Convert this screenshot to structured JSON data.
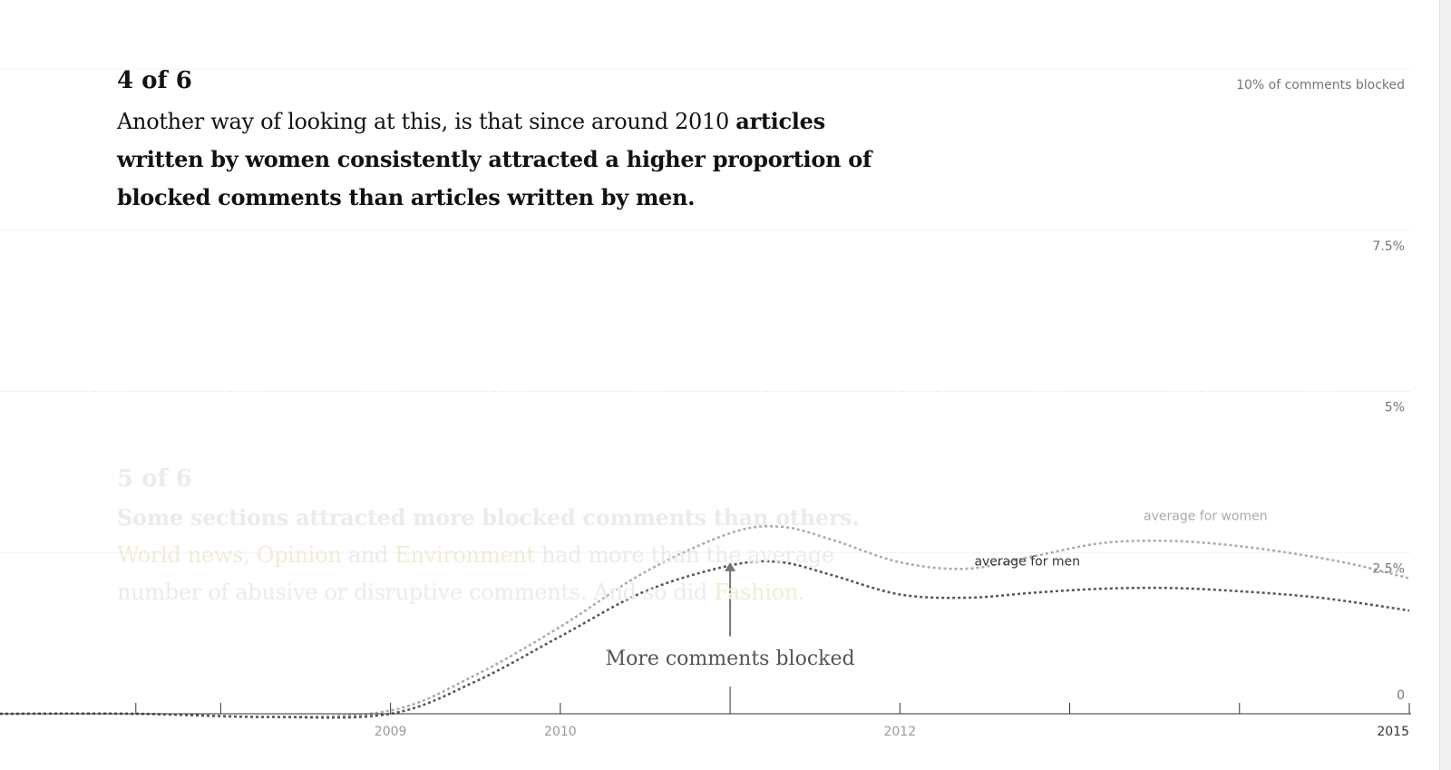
{
  "step": {
    "counter": "4 of 6",
    "text_plain": "Another way of looking at this, is that since around 2010 ",
    "text_bold": "articles written by women consistently attracted a higher proportion of blocked comments than articles written by men."
  },
  "next_step": {
    "counter": "5 of 6",
    "heading": "Some sections attracted more blocked comments than others.",
    "sec_world": "World news",
    "sep1": ", ",
    "sec_opinion": "Opinion",
    "sep2": " and ",
    "sec_env": "Environment",
    "rest1": " had more than the average number of abusive or disruptive comments. And so did ",
    "sec_fashion": "Fashion",
    "end": "."
  },
  "chart_data": {
    "type": "line",
    "ylabel": "10% of comments blocked",
    "ylim": [
      0,
      10
    ],
    "y_ticks": [
      {
        "value": 10,
        "label": "10% of comments blocked"
      },
      {
        "value": 7.5,
        "label": "7.5%"
      },
      {
        "value": 5,
        "label": "5%"
      },
      {
        "value": 2.5,
        "label": "2.5%"
      },
      {
        "value": 0,
        "label": "0"
      }
    ],
    "xlim": [
      2006.7,
      2015
    ],
    "x_ticks": [
      2007.5,
      2008,
      2009,
      2010,
      2011,
      2012,
      2013,
      2014,
      2015
    ],
    "x_labels": [
      {
        "value": 2009,
        "label": "2009"
      },
      {
        "value": 2010,
        "label": "2010"
      },
      {
        "value": 2012,
        "label": "2012"
      },
      {
        "value": 2015,
        "label": "2015"
      }
    ],
    "series": [
      {
        "name": "average for women",
        "color": "#aaaaaa",
        "x": [
          2006.7,
          2007.5,
          2008.3,
          2009.0,
          2009.5,
          2010.0,
          2010.5,
          2011.0,
          2011.3,
          2011.6,
          2012.0,
          2012.4,
          2012.8,
          2013.2,
          2013.6,
          2014.0,
          2014.4,
          2014.7,
          2015.0
        ],
        "y": [
          0.0,
          0.0,
          -0.05,
          0.05,
          0.6,
          1.35,
          2.2,
          2.8,
          2.9,
          2.7,
          2.35,
          2.25,
          2.45,
          2.65,
          2.68,
          2.6,
          2.45,
          2.3,
          2.1
        ]
      },
      {
        "name": "average for men",
        "color": "#555555",
        "x": [
          2006.7,
          2007.5,
          2008.3,
          2009.0,
          2009.5,
          2010.0,
          2010.5,
          2011.0,
          2011.3,
          2011.6,
          2012.0,
          2012.4,
          2012.8,
          2013.2,
          2013.6,
          2014.0,
          2014.4,
          2014.7,
          2015.0
        ],
        "y": [
          0.0,
          0.0,
          -0.05,
          0.0,
          0.5,
          1.2,
          1.9,
          2.3,
          2.35,
          2.15,
          1.85,
          1.8,
          1.88,
          1.94,
          1.95,
          1.9,
          1.82,
          1.72,
          1.6
        ]
      }
    ],
    "series_labels": [
      {
        "text": "average for women",
        "x": 2013.8,
        "y": 3.0,
        "color": "#aaaaaa"
      },
      {
        "text": "average for men",
        "x": 2012.75,
        "y": 2.3,
        "color": "#333333"
      }
    ],
    "annotation": {
      "text": "More comments blocked",
      "x": 2011,
      "arrow_from_y": 1.2,
      "arrow_to_y": 2.35
    },
    "grid": true
  }
}
